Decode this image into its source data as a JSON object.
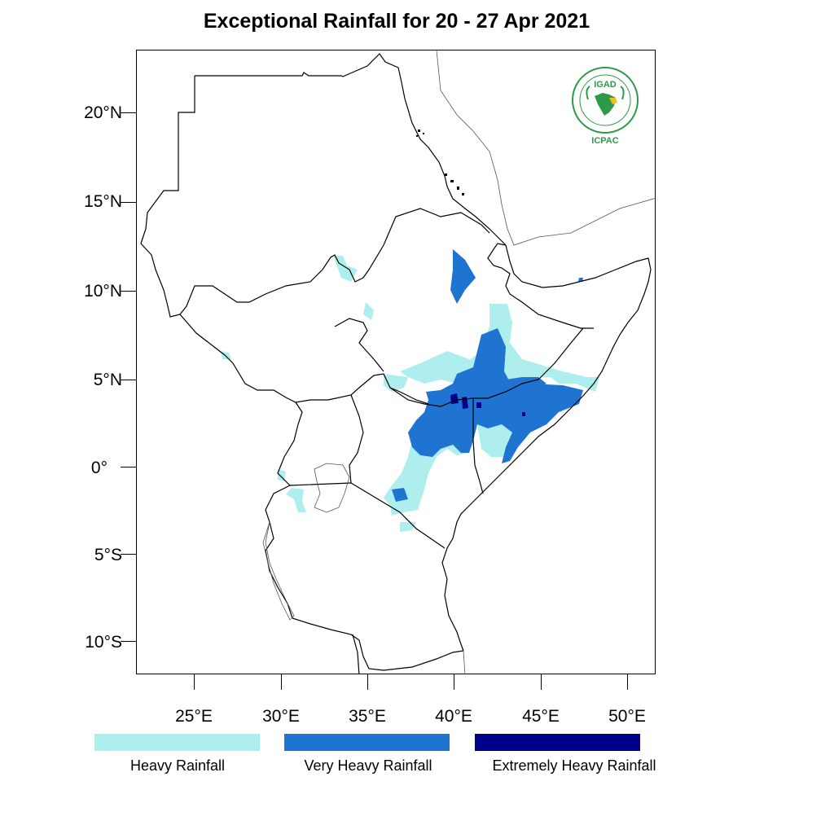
{
  "title": "Exceptional Rainfall for 20 - 27 Apr 2021",
  "axes": {
    "lat_ticks": [
      {
        "value": 20,
        "label": "20°N"
      },
      {
        "value": 15,
        "label": "15°N"
      },
      {
        "value": 10,
        "label": "10°N"
      },
      {
        "value": 5,
        "label": "5°N"
      },
      {
        "value": 0,
        "label": "0°"
      },
      {
        "value": -5,
        "label": "5°S"
      },
      {
        "value": -10,
        "label": "10°S"
      }
    ],
    "lon_ticks": [
      {
        "value": 25,
        "label": "25°E"
      },
      {
        "value": 30,
        "label": "30°E"
      },
      {
        "value": 35,
        "label": "35°E"
      },
      {
        "value": 40,
        "label": "40°E"
      },
      {
        "value": 45,
        "label": "45°E"
      },
      {
        "value": 50,
        "label": "50°E"
      }
    ],
    "lat_range": [
      -12,
      23.5
    ],
    "lon_range": [
      21.7,
      51.6
    ]
  },
  "legend": [
    {
      "label": "Heavy Rainfall",
      "color": "#aeeeee"
    },
    {
      "label": "Very Heavy Rainfall",
      "color": "#1e74d0"
    },
    {
      "label": "Extremely Heavy Rainfall",
      "color": "#00008b"
    }
  ],
  "logo": {
    "top_text": "IGAD",
    "bottom_text": "ICPAC",
    "icon": "igad-icpac-logo",
    "color": "#2e9a48"
  }
}
